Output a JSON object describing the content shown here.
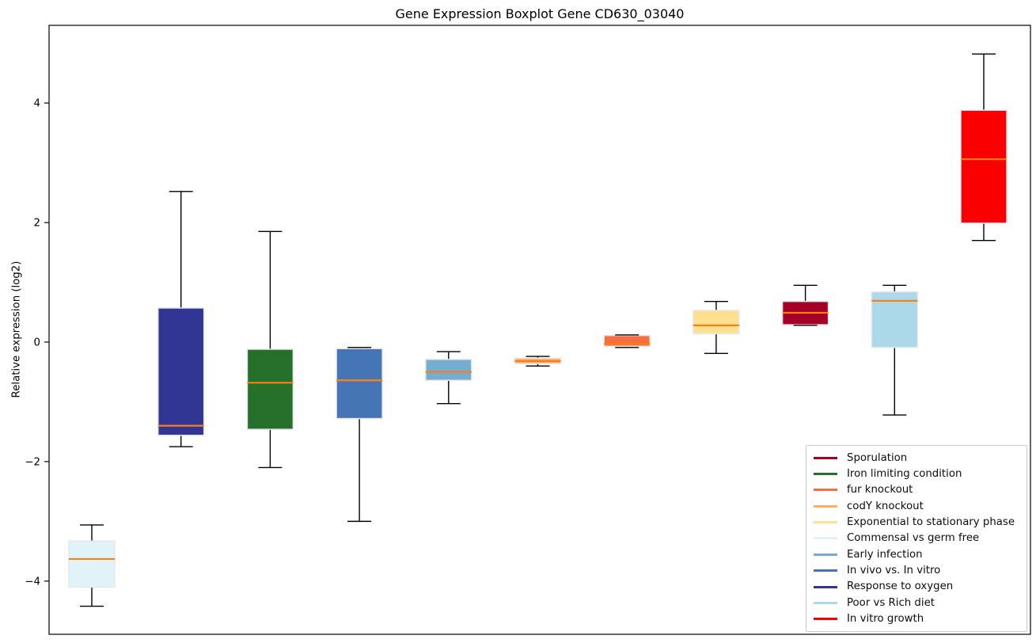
{
  "chart_data": {
    "type": "boxplot",
    "title": "Gene Expression Boxplot Gene CD630_03040",
    "ylabel": "Relative expression (log2)",
    "xlabel": "",
    "ylim": [
      -4.89,
      5.3
    ],
    "yticks": [
      -4,
      -2,
      0,
      2,
      4
    ],
    "ytick_labels": [
      "−4",
      "−2",
      "0",
      "2",
      "4"
    ],
    "xtick_labels": [],
    "grid": false,
    "median_color": "#ff7f0e",
    "whisker_color": "#000000",
    "box_edge_color": "#e6e6ee",
    "series": [
      {
        "name": "Commensal vs germ free",
        "color": "#E0F3F8",
        "whisker_low": -4.42,
        "q1": -4.1,
        "median": -3.63,
        "q3": -3.33,
        "whisker_high": -3.06
      },
      {
        "name": "Response to oxygen",
        "color": "#313695",
        "whisker_low": -1.75,
        "q1": -1.56,
        "median": -1.4,
        "q3": 0.57,
        "whisker_high": 2.52
      },
      {
        "name": "Iron limiting condition",
        "color": "#27702B",
        "whisker_low": -2.1,
        "q1": -1.46,
        "median": -0.68,
        "q3": -0.12,
        "whisker_high": 1.85
      },
      {
        "name": "In vivo vs. In vitro",
        "color": "#4575B4",
        "whisker_low": -3.0,
        "q1": -1.28,
        "median": -0.64,
        "q3": -0.11,
        "whisker_high": -0.09
      },
      {
        "name": "Early infection",
        "color": "#74ADD1",
        "whisker_low": -1.03,
        "q1": -0.64,
        "median": -0.5,
        "q3": -0.29,
        "whisker_high": -0.16
      },
      {
        "name": "codY knockout",
        "color": "#FDAE61",
        "whisker_low": -0.4,
        "q1": -0.36,
        "median": -0.32,
        "q3": -0.27,
        "whisker_high": -0.24
      },
      {
        "name": "fur knockout",
        "color": "#F46D43",
        "whisker_low": -0.09,
        "q1": -0.07,
        "median": -0.03,
        "q3": 0.11,
        "whisker_high": 0.12
      },
      {
        "name": "Exponential to stationary phase",
        "color": "#FEE090",
        "whisker_low": -0.19,
        "q1": 0.14,
        "median": 0.28,
        "q3": 0.53,
        "whisker_high": 0.68
      },
      {
        "name": "Sporulation",
        "color": "#A50026",
        "whisker_low": 0.28,
        "q1": 0.29,
        "median": 0.49,
        "q3": 0.68,
        "whisker_high": 0.95
      },
      {
        "name": "Poor vs Rich diet",
        "color": "#ABD9E9",
        "whisker_low": -1.22,
        "q1": -0.09,
        "median": 0.69,
        "q3": 0.84,
        "whisker_high": 0.95
      },
      {
        "name": "In vitro growth",
        "color": "#FB0000",
        "whisker_low": 1.7,
        "q1": 1.99,
        "median": 3.06,
        "q3": 3.88,
        "whisker_high": 4.82
      }
    ],
    "legend": {
      "position": "lower right",
      "entries": [
        {
          "label": "Sporulation",
          "color": "#A50026"
        },
        {
          "label": "Iron limiting condition",
          "color": "#27702B"
        },
        {
          "label": "fur knockout",
          "color": "#F46D43"
        },
        {
          "label": "codY knockout",
          "color": "#FDAE61"
        },
        {
          "label": "Exponential to stationary phase",
          "color": "#FEE090"
        },
        {
          "label": "Commensal vs germ free",
          "color": "#E0F3F8"
        },
        {
          "label": "Early infection",
          "color": "#74ADD1"
        },
        {
          "label": "In vivo vs. In vitro",
          "color": "#4575B4"
        },
        {
          "label": "Response to oxygen",
          "color": "#313695"
        },
        {
          "label": "Poor vs Rich diet",
          "color": "#ABD9E9"
        },
        {
          "label": "In vitro growth",
          "color": "#FB0000"
        }
      ]
    }
  }
}
